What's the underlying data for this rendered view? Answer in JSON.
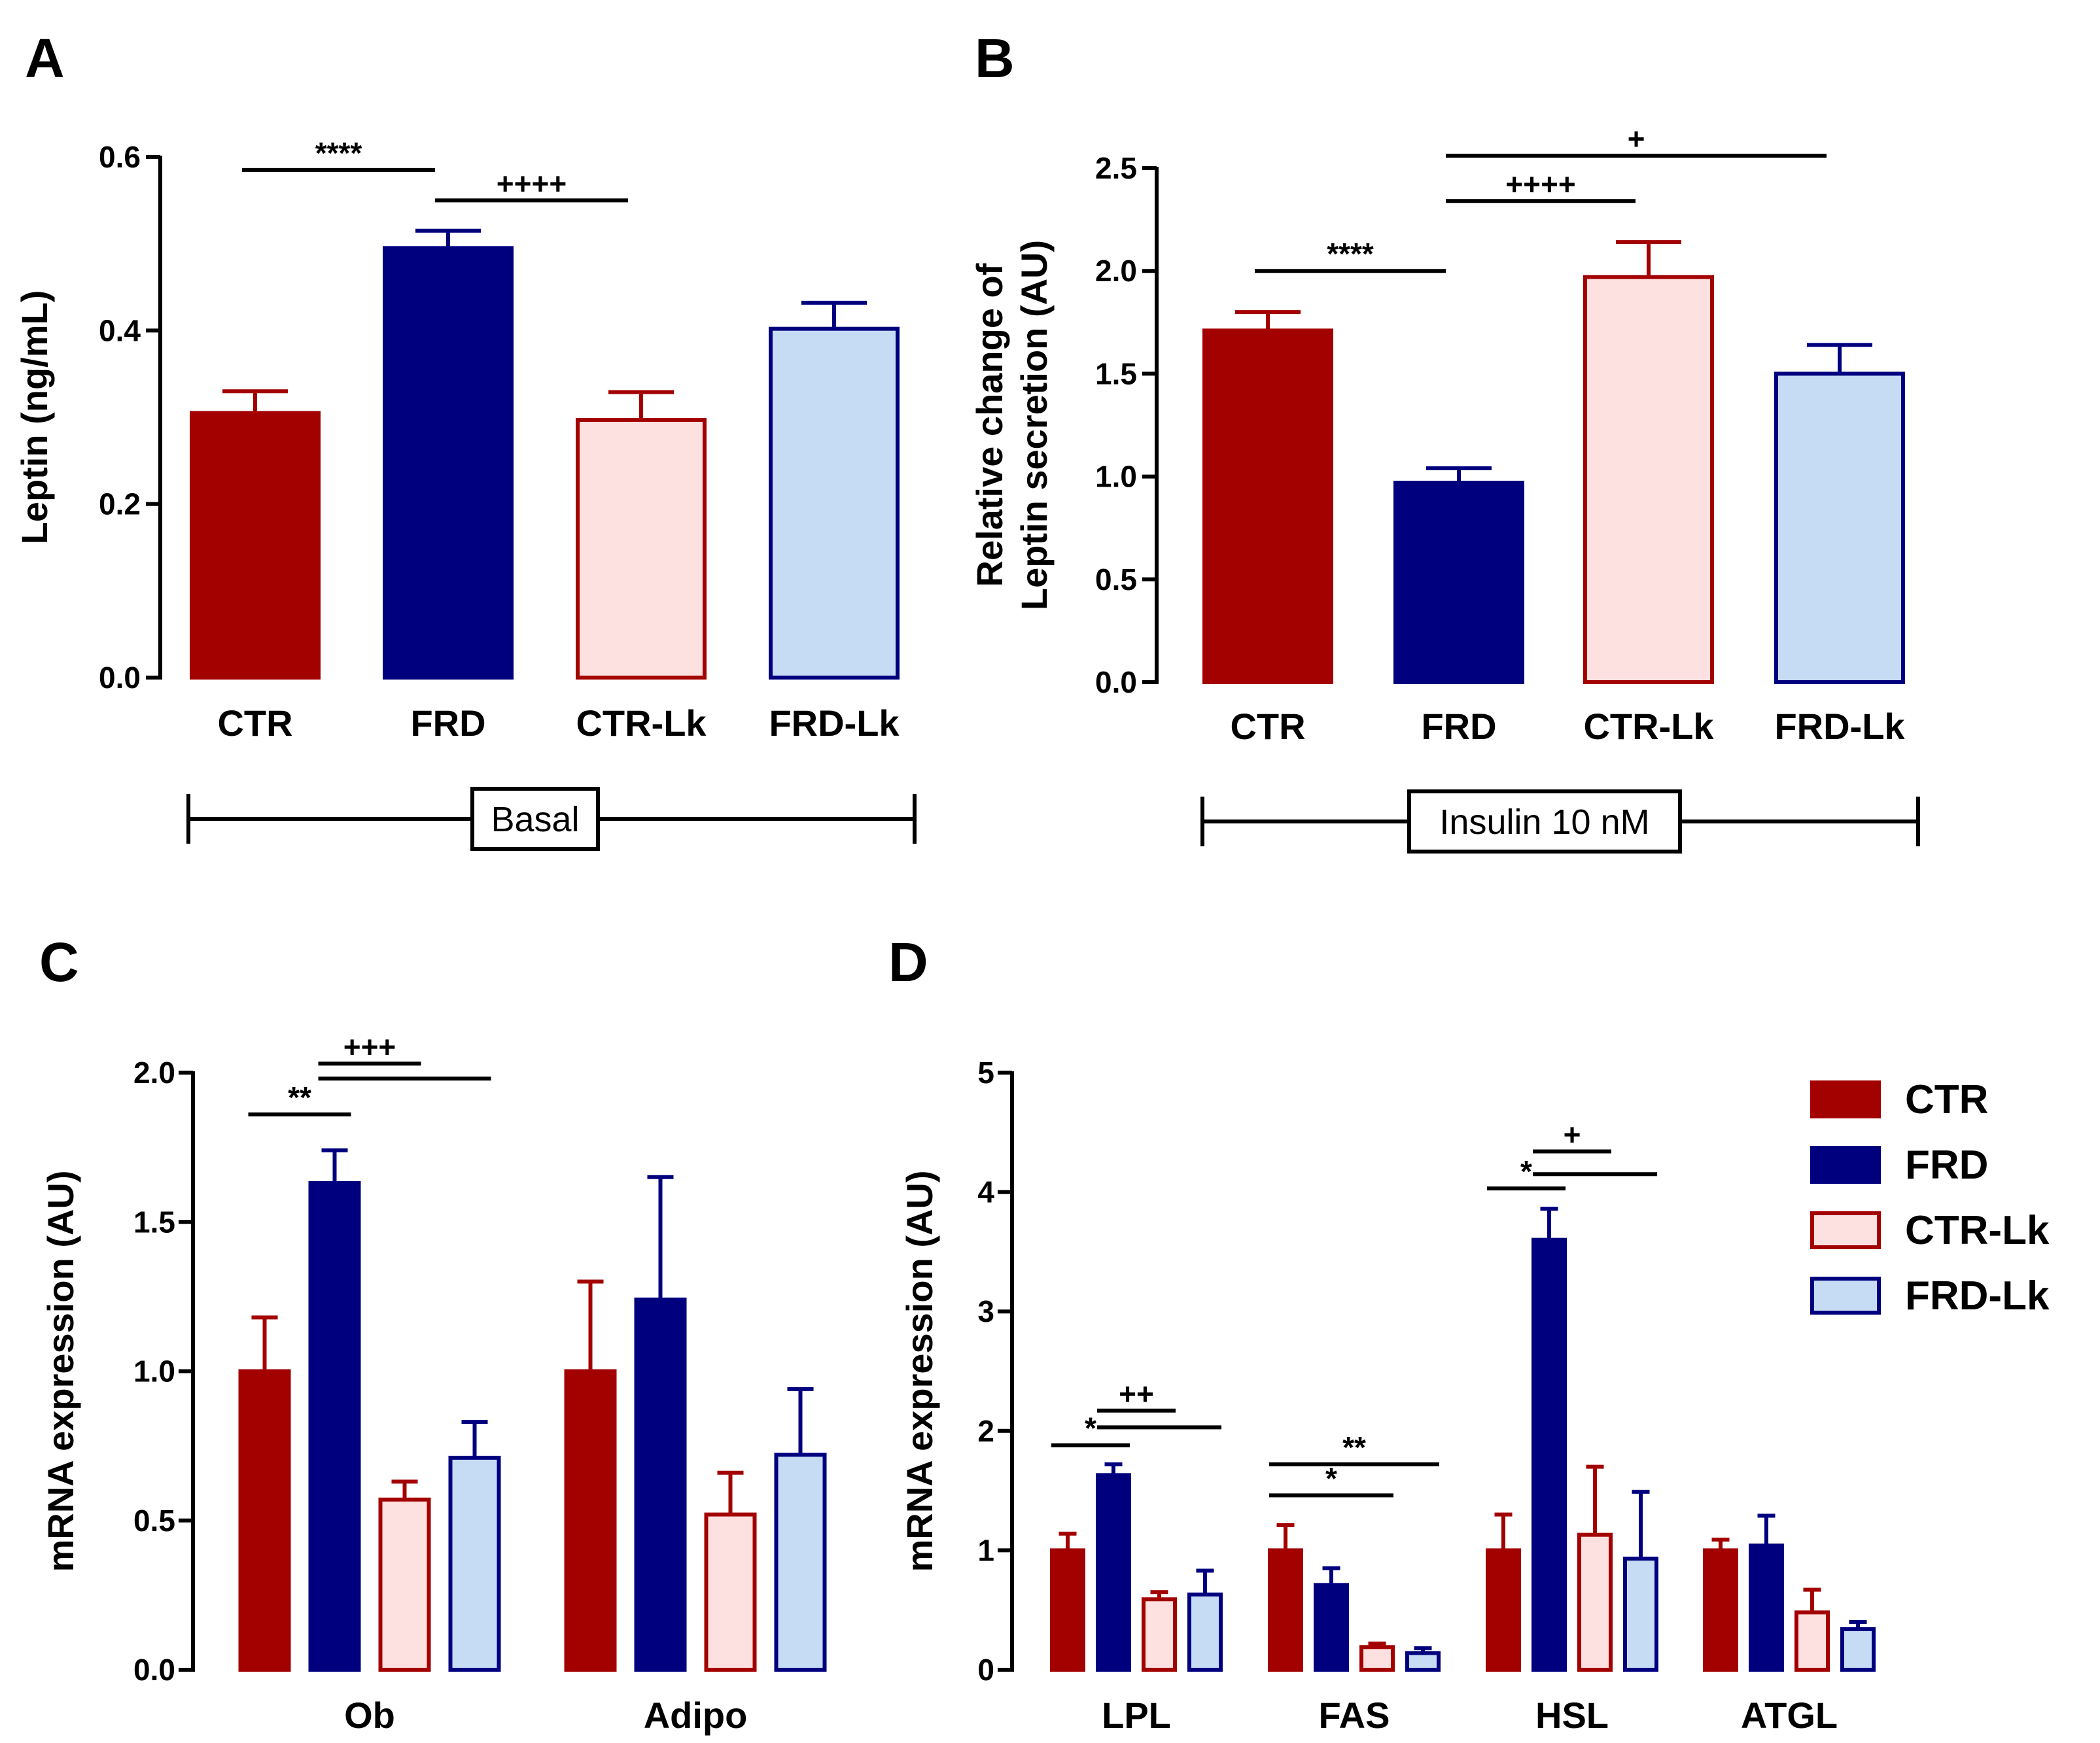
{
  "colors": {
    "CTR": {
      "fill": "#a30000",
      "stroke": "#a30000"
    },
    "FRD": {
      "fill": "#00007f",
      "stroke": "#00007f"
    },
    "CTR-Lk": {
      "fill": "#fde0e0",
      "stroke": "#a30000"
    },
    "FRD-Lk": {
      "fill": "#c6dcf5",
      "stroke": "#00007f"
    }
  },
  "legend": {
    "items": [
      "CTR",
      "FRD",
      "CTR-Lk",
      "FRD-Lk"
    ]
  },
  "chart_data": [
    {
      "id": "A",
      "panel_label": "A",
      "type": "bar",
      "ylabel": "Leptin (ng/mL)",
      "ylim": [
        0,
        0.6
      ],
      "yticks": [
        0.0,
        0.2,
        0.4,
        0.6
      ],
      "ytick_labels": [
        "0.0",
        "0.2",
        "0.4",
        "0.6"
      ],
      "categories": [
        "CTR",
        "FRD",
        "CTR-Lk",
        "FRD-Lk"
      ],
      "values": [
        0.305,
        0.495,
        0.297,
        0.402
      ],
      "errors": [
        0.025,
        0.02,
        0.032,
        0.03
      ],
      "significance": [
        {
          "from": 0,
          "to": 1,
          "y": 0.585,
          "label": "****"
        },
        {
          "from": 1,
          "to": 2,
          "y": 0.55,
          "label": "++++"
        }
      ],
      "condition": "Basal"
    },
    {
      "id": "B",
      "panel_label": "B",
      "type": "bar",
      "ylabel": [
        "Relative change of",
        "Leptin secretion (AU)"
      ],
      "ylim": [
        0,
        2.5
      ],
      "yticks": [
        0.0,
        0.5,
        1.0,
        1.5,
        2.0,
        2.5
      ],
      "ytick_labels": [
        "0.0",
        "0.5",
        "1.0",
        "1.5",
        "2.0",
        "2.5"
      ],
      "categories": [
        "CTR",
        "FRD",
        "CTR-Lk",
        "FRD-Lk"
      ],
      "values": [
        1.71,
        0.97,
        1.97,
        1.5
      ],
      "errors": [
        0.09,
        0.07,
        0.17,
        0.14
      ],
      "significance": [
        {
          "from": 0,
          "to": 1,
          "y": 2.0,
          "label": "****"
        },
        {
          "from": 1,
          "to": 2,
          "y": 2.34,
          "label": "++++"
        },
        {
          "from": 1,
          "to": 3,
          "y": 2.56,
          "label": "+"
        }
      ],
      "condition": "Insulin 10 nM"
    },
    {
      "id": "C",
      "panel_label": "C",
      "type": "bar",
      "ylabel": "mRNA expression (AU)",
      "ylim": [
        0,
        2.0
      ],
      "yticks": [
        0.0,
        0.5,
        1.0,
        1.5,
        2.0
      ],
      "ytick_labels": [
        "0.0",
        "0.5",
        "1.0",
        "1.5",
        "2.0"
      ],
      "categories": [
        "Ob",
        "Adipo"
      ],
      "series": [
        {
          "name": "CTR",
          "values": [
            1.0,
            1.0
          ],
          "errors": [
            0.18,
            0.3
          ]
        },
        {
          "name": "FRD",
          "values": [
            1.63,
            1.24
          ],
          "errors": [
            0.11,
            0.41
          ]
        },
        {
          "name": "CTR-Lk",
          "values": [
            0.57,
            0.52
          ],
          "errors": [
            0.06,
            0.14
          ]
        },
        {
          "name": "FRD-Lk",
          "values": [
            0.71,
            0.72
          ],
          "errors": [
            0.12,
            0.22
          ]
        }
      ],
      "significance": [
        {
          "group": 0,
          "from": 0,
          "to": 1,
          "y": 1.86,
          "label": "**"
        },
        {
          "group": 0,
          "from": 1,
          "to": 2,
          "y": 2.03,
          "label": "+++"
        },
        {
          "group": 0,
          "from": 1,
          "to": 3,
          "y": 1.98,
          "label": ""
        }
      ]
    },
    {
      "id": "D",
      "panel_label": "D",
      "type": "bar",
      "ylabel": "mRNA expression (AU)",
      "ylim": [
        0,
        5
      ],
      "yticks": [
        0,
        1,
        2,
        3,
        4,
        5
      ],
      "ytick_labels": [
        "0",
        "1",
        "2",
        "3",
        "4",
        "5"
      ],
      "categories": [
        "LPL",
        "FAS",
        "HSL",
        "ATGL"
      ],
      "series": [
        {
          "name": "CTR",
          "values": [
            1.0,
            1.0,
            1.0,
            1.0
          ],
          "errors": [
            0.14,
            0.21,
            0.3,
            0.09
          ]
        },
        {
          "name": "FRD",
          "values": [
            1.63,
            0.71,
            3.6,
            1.04
          ],
          "errors": [
            0.09,
            0.14,
            0.26,
            0.25
          ]
        },
        {
          "name": "CTR-Lk",
          "values": [
            0.59,
            0.19,
            1.13,
            0.48
          ],
          "errors": [
            0.06,
            0.03,
            0.57,
            0.19
          ]
        },
        {
          "name": "FRD-Lk",
          "values": [
            0.63,
            0.14,
            0.93,
            0.34
          ],
          "errors": [
            0.2,
            0.04,
            0.56,
            0.06
          ]
        }
      ],
      "significance": [
        {
          "group": 0,
          "from": 0,
          "to": 1,
          "y": 1.88,
          "label": "*"
        },
        {
          "group": 0,
          "from": 1,
          "to": 2,
          "y": 2.17,
          "label": "++"
        },
        {
          "group": 0,
          "from": 1,
          "to": 3,
          "y": 2.03,
          "label": ""
        },
        {
          "group": 1,
          "from": 0,
          "to": 2,
          "y": 1.46,
          "label": "*"
        },
        {
          "group": 1,
          "from": 0,
          "to": 3,
          "y": 1.72,
          "label": "**"
        },
        {
          "group": 2,
          "from": 0,
          "to": 1,
          "y": 4.03,
          "label": "*"
        },
        {
          "group": 2,
          "from": 1,
          "to": 2,
          "y": 4.34,
          "label": "+"
        },
        {
          "group": 2,
          "from": 1,
          "to": 3,
          "y": 4.15,
          "label": ""
        }
      ]
    }
  ]
}
